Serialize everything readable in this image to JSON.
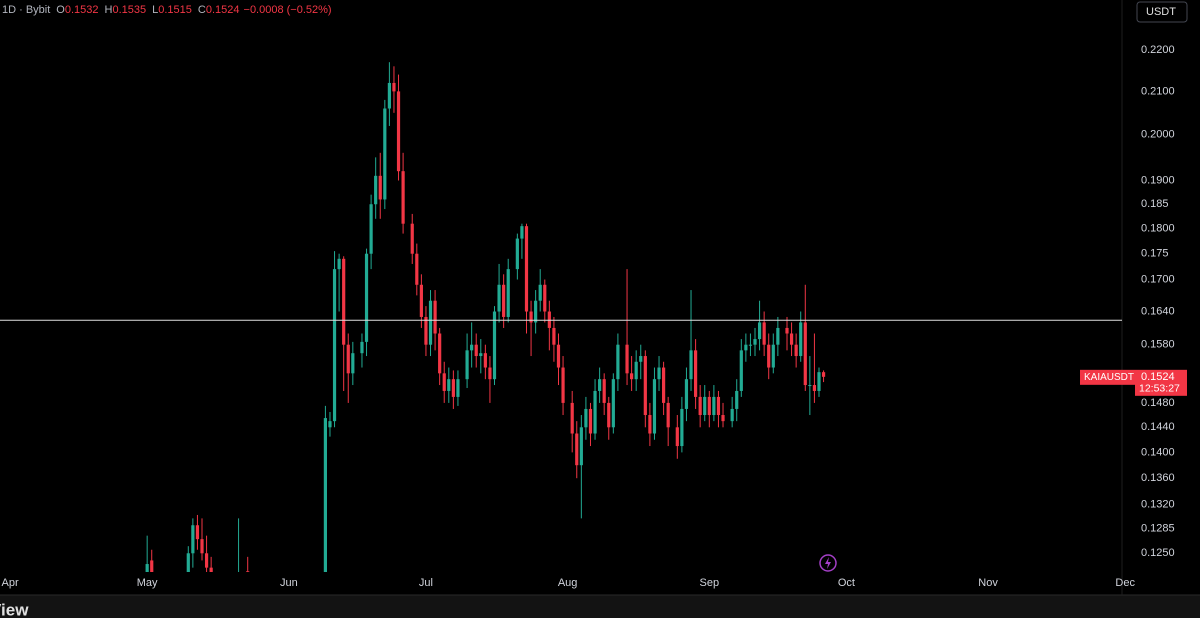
{
  "chart_data": {
    "type": "candlestick",
    "symbol_info": "1D · Bybit",
    "ohlc_legend": [
      {
        "label": "O",
        "value": 0.1532
      },
      {
        "label": "H",
        "value": 0.1535
      },
      {
        "label": "L",
        "value": 0.1515
      },
      {
        "label": "C",
        "value": 0.1524
      }
    ],
    "change": "−0.0008 (−0.52%)",
    "currency": "USDT",
    "symbol": "KAIAUSDT",
    "last_price": 0.1524,
    "countdown": "12:53:27",
    "up_color": "#22ab94",
    "down_color": "#f23645",
    "log_scale": true,
    "horizontal_line": 0.1624,
    "x": [
      30,
      31,
      39,
      40,
      41,
      42,
      43,
      44,
      50,
      52,
      69,
      70,
      71,
      72,
      73,
      74,
      75,
      77,
      78,
      79,
      80,
      81,
      82,
      83,
      84,
      85,
      86,
      88,
      89,
      90,
      91,
      92,
      93,
      94,
      95,
      96,
      97,
      98,
      100,
      101,
      102,
      103,
      104,
      105,
      106,
      107,
      108,
      109,
      111,
      112,
      113,
      114,
      115,
      116,
      117,
      118,
      119,
      120,
      121,
      123,
      124,
      125,
      126,
      127,
      128,
      129,
      130,
      131,
      132,
      133,
      135,
      136,
      137,
      138,
      139,
      140,
      141,
      142,
      143,
      144,
      146,
      147,
      148,
      149,
      150,
      151,
      152,
      153,
      154,
      155,
      156,
      158,
      159,
      160,
      161,
      162,
      163,
      164,
      165,
      166,
      167,
      168,
      170,
      171,
      172,
      173,
      174,
      175,
      176,
      177,
      178
    ],
    "open": [
      0.1215,
      0.124,
      0.122,
      0.125,
      0.129,
      0.127,
      0.125,
      0.123,
      0.121,
      0.1225,
      0.118,
      0.144,
      0.145,
      0.172,
      0.174,
      0.158,
      0.153,
      0.1565,
      0.1585,
      0.175,
      0.185,
      0.191,
      0.186,
      0.206,
      0.212,
      0.21,
      0.192,
      0.181,
      0.175,
      0.169,
      0.163,
      0.158,
      0.166,
      0.16,
      0.153,
      0.15,
      0.152,
      0.149,
      0.152,
      0.157,
      0.158,
      0.156,
      0.1565,
      0.154,
      0.152,
      0.164,
      0.169,
      0.163,
      0.172,
      0.178,
      0.1805,
      0.164,
      0.162,
      0.166,
      0.169,
      0.164,
      0.161,
      0.158,
      0.154,
      0.148,
      0.143,
      0.138,
      0.144,
      0.147,
      0.143,
      0.15,
      0.152,
      0.148,
      0.144,
      0.152,
      0.158,
      0.153,
      0.152,
      0.155,
      0.156,
      0.146,
      0.143,
      0.152,
      0.154,
      0.148,
      0.144,
      0.141,
      0.147,
      0.152,
      0.157,
      0.149,
      0.146,
      0.149,
      0.146,
      0.149,
      0.146,
      0.145,
      0.147,
      0.15,
      0.157,
      0.158,
      0.158,
      0.159,
      0.162,
      0.158,
      0.154,
      0.158,
      0.161,
      0.16,
      0.158,
      0.156,
      0.162,
      0.151,
      0.151,
      0.15,
      0.1532
    ],
    "high": [
      0.1275,
      0.1255,
      0.126,
      0.13,
      0.1305,
      0.13,
      0.1275,
      0.1245,
      0.13,
      0.1245,
      0.1475,
      0.1465,
      0.1755,
      0.175,
      0.1745,
      0.16,
      0.1585,
      0.16,
      0.176,
      0.187,
      0.195,
      0.196,
      0.208,
      0.217,
      0.216,
      0.214,
      0.196,
      0.183,
      0.177,
      0.171,
      0.165,
      0.168,
      0.168,
      0.161,
      0.155,
      0.154,
      0.1535,
      0.1535,
      0.16,
      0.162,
      0.16,
      0.159,
      0.158,
      0.156,
      0.165,
      0.173,
      0.171,
      0.174,
      0.179,
      0.181,
      0.181,
      0.166,
      0.168,
      0.172,
      0.17,
      0.166,
      0.163,
      0.16,
      0.156,
      0.15,
      0.145,
      0.146,
      0.149,
      0.148,
      0.152,
      0.154,
      0.153,
      0.149,
      0.153,
      0.16,
      0.172,
      0.156,
      0.157,
      0.158,
      0.157,
      0.148,
      0.154,
      0.156,
      0.155,
      0.149,
      0.146,
      0.149,
      0.154,
      0.168,
      0.159,
      0.151,
      0.151,
      0.15,
      0.151,
      0.15,
      0.148,
      0.149,
      0.152,
      0.159,
      0.16,
      0.16,
      0.161,
      0.166,
      0.164,
      0.16,
      0.16,
      0.163,
      0.163,
      0.162,
      0.16,
      0.164,
      0.169,
      0.156,
      0.16,
      0.154,
      0.1535
    ],
    "low": [
      0.12,
      0.119,
      0.12,
      0.123,
      0.1255,
      0.124,
      0.1215,
      0.12,
      0.12,
      0.12,
      0.117,
      0.1425,
      0.144,
      0.164,
      0.15,
      0.148,
      0.151,
      0.154,
      0.156,
      0.172,
      0.182,
      0.182,
      0.184,
      0.202,
      0.205,
      0.19,
      0.179,
      0.173,
      0.167,
      0.161,
      0.156,
      0.156,
      0.157,
      0.151,
      0.148,
      0.148,
      0.147,
      0.1475,
      0.1505,
      0.154,
      0.154,
      0.153,
      0.152,
      0.148,
      0.151,
      0.162,
      0.161,
      0.162,
      0.17,
      0.174,
      0.16,
      0.156,
      0.16,
      0.164,
      0.162,
      0.157,
      0.155,
      0.151,
      0.146,
      0.14,
      0.136,
      0.13,
      0.142,
      0.141,
      0.142,
      0.148,
      0.146,
      0.142,
      0.143,
      0.15,
      0.151,
      0.15,
      0.15,
      0.152,
      0.144,
      0.141,
      0.142,
      0.15,
      0.146,
      0.141,
      0.139,
      0.14,
      0.145,
      0.15,
      0.147,
      0.144,
      0.145,
      0.144,
      0.145,
      0.144,
      0.144,
      0.144,
      0.145,
      0.149,
      0.155,
      0.156,
      0.156,
      0.157,
      0.156,
      0.152,
      0.153,
      0.156,
      0.157,
      0.156,
      0.154,
      0.155,
      0.15,
      0.146,
      0.148,
      0.149,
      0.1515
    ],
    "close": [
      0.1235,
      0.122,
      0.125,
      0.129,
      0.127,
      0.125,
      0.123,
      0.1215,
      0.122,
      0.121,
      0.1455,
      0.145,
      0.172,
      0.174,
      0.158,
      0.153,
      0.1565,
      0.1585,
      0.175,
      0.185,
      0.191,
      0.186,
      0.206,
      0.212,
      0.21,
      0.192,
      0.181,
      0.175,
      0.169,
      0.163,
      0.158,
      0.166,
      0.16,
      0.153,
      0.15,
      0.152,
      0.149,
      0.152,
      0.157,
      0.158,
      0.156,
      0.1565,
      0.154,
      0.152,
      0.164,
      0.169,
      0.163,
      0.172,
      0.178,
      0.1805,
      0.164,
      0.162,
      0.166,
      0.169,
      0.164,
      0.161,
      0.158,
      0.154,
      0.148,
      0.143,
      0.138,
      0.144,
      0.147,
      0.143,
      0.15,
      0.152,
      0.148,
      0.144,
      0.152,
      0.158,
      0.153,
      0.152,
      0.155,
      0.156,
      0.146,
      0.143,
      0.152,
      0.154,
      0.148,
      0.144,
      0.141,
      0.147,
      0.152,
      0.157,
      0.149,
      0.146,
      0.149,
      0.146,
      0.149,
      0.146,
      0.145,
      0.147,
      0.15,
      0.157,
      0.158,
      0.158,
      0.159,
      0.162,
      0.158,
      0.154,
      0.158,
      0.161,
      0.16,
      0.158,
      0.156,
      0.162,
      0.151,
      0.151,
      0.15,
      0.1532,
      0.1524
    ],
    "xlim": [
      -2.2,
      243.3
    ],
    "xticks": [
      {
        "value": 0,
        "label": "Apr"
      },
      {
        "value": 30,
        "label": "May"
      },
      {
        "value": 61,
        "label": "Jun"
      },
      {
        "value": 91,
        "label": "Jul"
      },
      {
        "value": 122,
        "label": "Aug"
      },
      {
        "value": 153,
        "label": "Sep"
      },
      {
        "value": 183,
        "label": "Oct"
      },
      {
        "value": 214,
        "label": "Nov"
      },
      {
        "value": 244,
        "label": "Dec"
      }
    ],
    "ylim": [
      0.1224,
      0.2327
    ],
    "yticks": [
      {
        "value": 0.22,
        "label": "0.2200"
      },
      {
        "value": 0.21,
        "label": "0.2100"
      },
      {
        "value": 0.2,
        "label": "0.2000"
      },
      {
        "value": 0.19,
        "label": "0.1900"
      },
      0.185,
      {
        "value": 0.18,
        "label": "0.1800"
      },
      0.175,
      {
        "value": 0.17,
        "label": "0.1700"
      },
      {
        "value": 0.164,
        "label": "0.1640"
      },
      {
        "value": 0.158,
        "label": "0.1580"
      },
      {
        "value": 0.148,
        "label": "0.1480"
      },
      {
        "value": 0.144,
        "label": "0.1440"
      },
      {
        "value": 0.14,
        "label": "0.1400"
      },
      {
        "value": 0.136,
        "label": "0.1360"
      },
      {
        "value": 0.132,
        "label": "0.1320"
      },
      0.1285,
      {
        "value": 0.125,
        "label": "0.1250"
      }
    ]
  },
  "footer": {
    "logo": "View"
  }
}
